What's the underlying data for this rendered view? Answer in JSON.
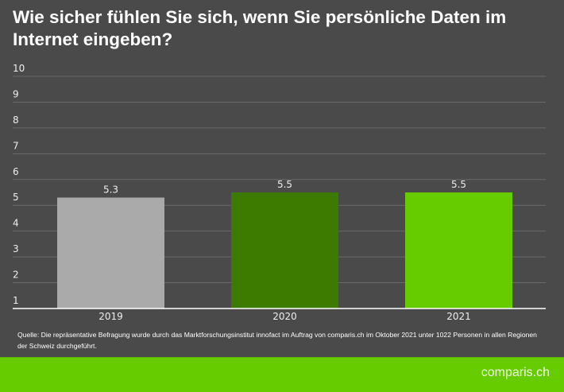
{
  "chart_data": {
    "type": "bar",
    "title": "Wie sicher fühlen Sie sich, wenn Sie persönliche Daten im Internet eingeben?",
    "categories": [
      "2019",
      "2020",
      "2021"
    ],
    "values": [
      5.3,
      5.5,
      5.5
    ],
    "data_labels": [
      "5.3",
      "5.5",
      "5.5"
    ],
    "colors": [
      "#aaaaaa",
      "#3d7a00",
      "#66cc00"
    ],
    "ylim": [
      1,
      10
    ],
    "yticks": [
      "1",
      "2",
      "3",
      "4",
      "5",
      "6",
      "7",
      "8",
      "9",
      "10"
    ],
    "grid": true,
    "xlabel": "",
    "ylabel": ""
  },
  "source": "Quelle: Die repräsentative Befragung wurde durch das Marktforschungsinstitut innofact im Auftrag von comparis.ch im Oktober 2021 unter 1022 Personen in allen Regionen der Schweiz durchgeführt.",
  "logo": "comparis.ch",
  "colors": {
    "background": "#4a4a4a",
    "footer": "#66cc00"
  }
}
